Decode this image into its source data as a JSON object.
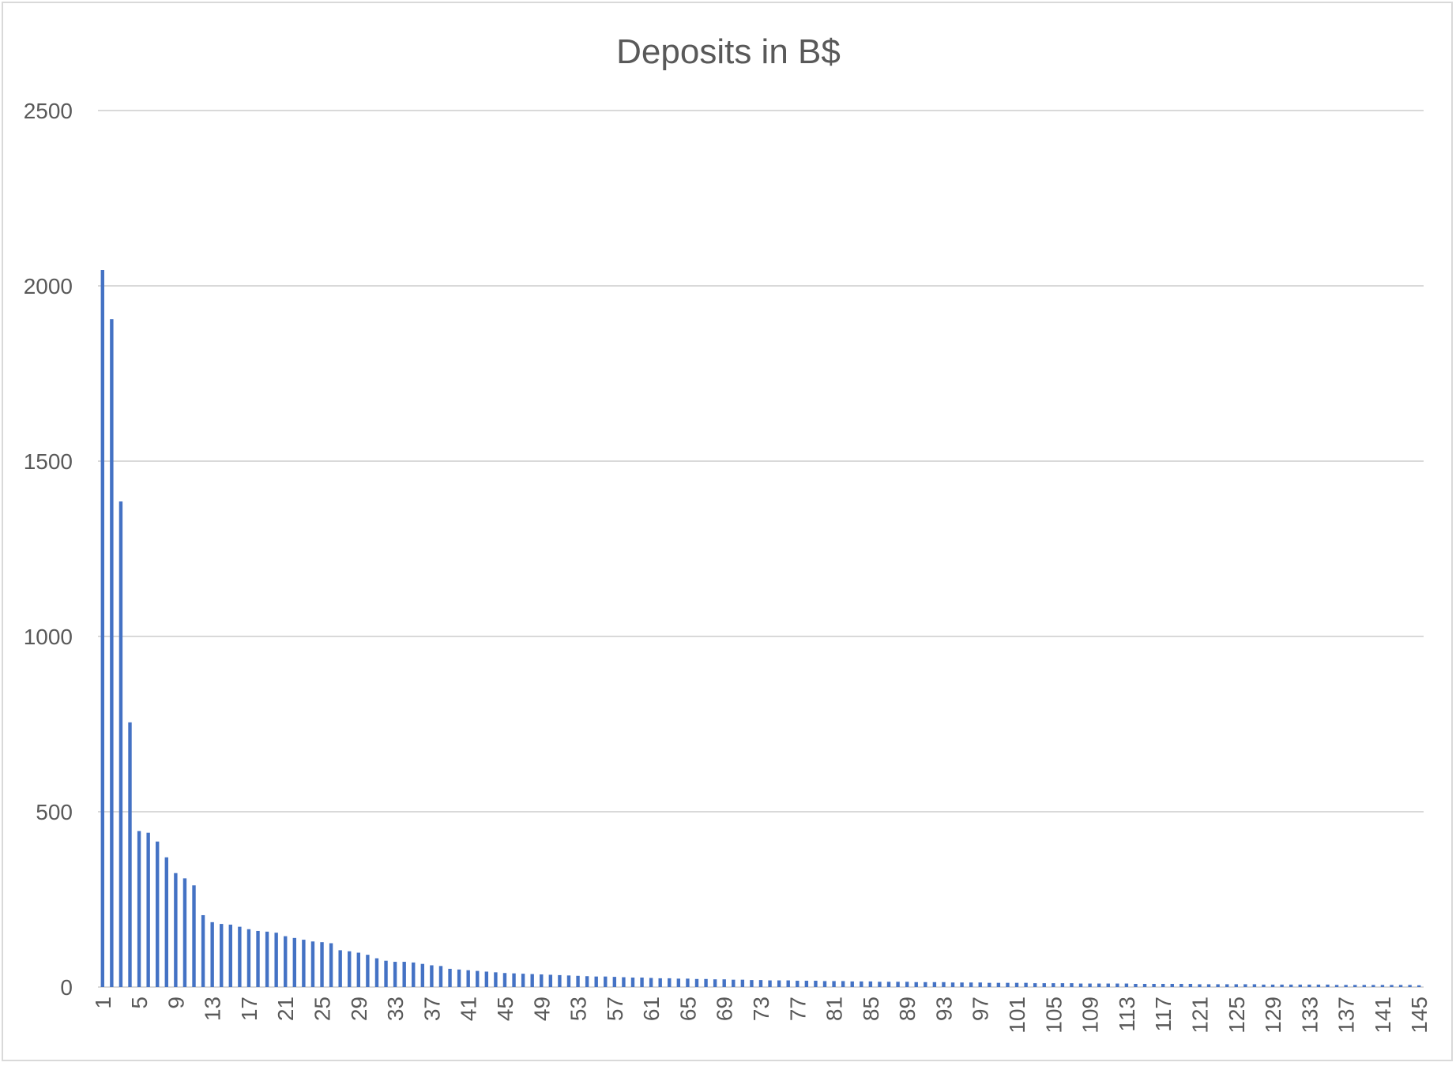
{
  "chart_data": {
    "type": "bar",
    "title": "Deposits in B$",
    "xlabel": "",
    "ylabel": "",
    "ylim": [
      0,
      2500
    ],
    "y_ticks": [
      0,
      500,
      1000,
      1500,
      2000,
      2500
    ],
    "x_tick_every": 4,
    "grid": "horizontal",
    "legend": "none",
    "bar_color": "#4472c4",
    "grid_color": "#d9d9d9",
    "categories": [
      1,
      2,
      3,
      4,
      5,
      6,
      7,
      8,
      9,
      10,
      11,
      12,
      13,
      14,
      15,
      16,
      17,
      18,
      19,
      20,
      21,
      22,
      23,
      24,
      25,
      26,
      27,
      28,
      29,
      30,
      31,
      32,
      33,
      34,
      35,
      36,
      37,
      38,
      39,
      40,
      41,
      42,
      43,
      44,
      45,
      46,
      47,
      48,
      49,
      50,
      51,
      52,
      53,
      54,
      55,
      56,
      57,
      58,
      59,
      60,
      61,
      62,
      63,
      64,
      65,
      66,
      67,
      68,
      69,
      70,
      71,
      72,
      73,
      74,
      75,
      76,
      77,
      78,
      79,
      80,
      81,
      82,
      83,
      84,
      85,
      86,
      87,
      88,
      89,
      90,
      91,
      92,
      93,
      94,
      95,
      96,
      97,
      98,
      99,
      100,
      101,
      102,
      103,
      104,
      105,
      106,
      107,
      108,
      109,
      110,
      111,
      112,
      113,
      114,
      115,
      116,
      117,
      118,
      119,
      120,
      121,
      122,
      123,
      124,
      125,
      126,
      127,
      128,
      129,
      130,
      131,
      132,
      133,
      134,
      135,
      136,
      137,
      138,
      139,
      140,
      141,
      142,
      143,
      144,
      145
    ],
    "values": [
      2045,
      1905,
      1385,
      755,
      445,
      440,
      415,
      370,
      325,
      310,
      290,
      205,
      185,
      180,
      178,
      172,
      165,
      160,
      158,
      155,
      145,
      140,
      135,
      130,
      128,
      125,
      105,
      102,
      98,
      92,
      82,
      75,
      72,
      72,
      70,
      66,
      62,
      60,
      52,
      50,
      48,
      46,
      44,
      42,
      40,
      39,
      38,
      37,
      36,
      35,
      34,
      33,
      32,
      31,
      30,
      30,
      29,
      28,
      27,
      27,
      26,
      25,
      25,
      24,
      24,
      23,
      23,
      22,
      22,
      21,
      21,
      20,
      20,
      19,
      19,
      19,
      18,
      18,
      18,
      17,
      17,
      17,
      16,
      16,
      16,
      15,
      15,
      15,
      15,
      14,
      14,
      14,
      14,
      13,
      13,
      13,
      13,
      12,
      12,
      12,
      12,
      12,
      11,
      11,
      11,
      11,
      11,
      10,
      10,
      10,
      10,
      10,
      10,
      9,
      9,
      9,
      9,
      9,
      9,
      9,
      8,
      8,
      8,
      8,
      8,
      8,
      8,
      7,
      7,
      7,
      7,
      7,
      7,
      7,
      7,
      6,
      6,
      6,
      6,
      6,
      6,
      6,
      6,
      6,
      5
    ]
  }
}
